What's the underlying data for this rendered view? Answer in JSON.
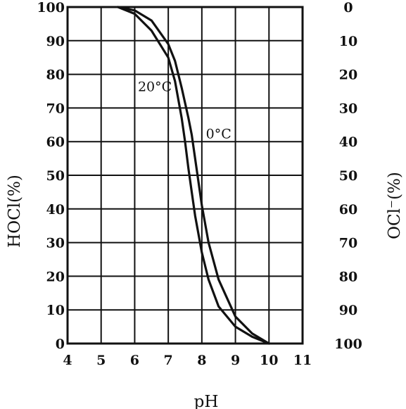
{
  "chart_data": {
    "type": "line",
    "xlabel": "pH",
    "ylabel_left": "HOCl(%)",
    "ylabel_right": "OCl⁻(%)",
    "xlim": [
      4,
      11
    ],
    "ylim": [
      0,
      100
    ],
    "x_ticks": [
      "4",
      "5",
      "6",
      "7",
      "8",
      "9",
      "10",
      "11"
    ],
    "y_ticks_left": [
      "0",
      "10",
      "20",
      "30",
      "40",
      "50",
      "60",
      "70",
      "80",
      "90",
      "100"
    ],
    "y_ticks_right": [
      "100",
      "90",
      "80",
      "70",
      "60",
      "50",
      "40",
      "30",
      "20",
      "10",
      "0"
    ],
    "grid": true,
    "series": [
      {
        "name": "20°C",
        "x": [
          5.5,
          6.0,
          6.5,
          7.0,
          7.2,
          7.4,
          7.5,
          7.6,
          7.7,
          7.8,
          8.0,
          8.2,
          8.5,
          9.0,
          9.5,
          10.0
        ],
        "y": [
          100,
          98,
          93,
          85,
          78,
          67,
          60,
          52,
          45,
          38,
          27,
          19,
          11,
          5,
          2,
          0
        ]
      },
      {
        "name": "0°C",
        "x": [
          5.5,
          6.0,
          6.5,
          7.0,
          7.2,
          7.4,
          7.6,
          7.7,
          7.8,
          7.9,
          8.0,
          8.2,
          8.5,
          9.0,
          9.5,
          10.0
        ],
        "y": [
          100,
          99,
          96,
          89,
          84,
          76,
          67,
          62,
          55,
          48,
          41,
          30,
          19,
          8,
          3,
          0
        ]
      }
    ],
    "annotations": [
      {
        "text": "20°C",
        "x": 6.6,
        "y": 75
      },
      {
        "text": "0°C",
        "x": 8.5,
        "y": 61
      }
    ]
  }
}
